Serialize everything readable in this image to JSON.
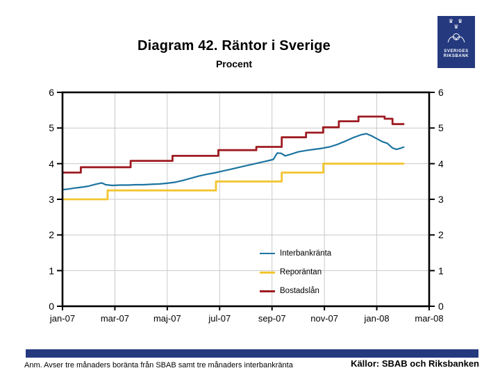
{
  "page": {
    "title": "Diagram 42. Räntor i Sverige",
    "subtitle": "Procent",
    "note": "Anm. Avser tre månaders boränta från SBAB samt tre månaders interbankränta",
    "sources": "Källor: SBAB och Riksbanken",
    "accent_color": "#24397E"
  },
  "logo": {
    "crowns_top": "♛ ♛",
    "crown_bottom": "♛",
    "line1": "SVERIGES",
    "line2": "RIKSBANK",
    "background": "#24397E"
  },
  "chart_data": {
    "type": "line",
    "title": "Diagram 42. Räntor i Sverige",
    "subtitle": "Procent",
    "xlabel": "",
    "ylabel": "Procent",
    "ylim": [
      0,
      6
    ],
    "yticks": [
      0,
      1,
      2,
      3,
      4,
      5,
      6
    ],
    "xlim_months": [
      0,
      14
    ],
    "xtick_months": [
      0,
      2,
      4,
      6,
      8,
      10,
      12,
      14
    ],
    "xlabels": [
      "jan-07",
      "mar-07",
      "maj-07",
      "jul-07",
      "sep-07",
      "nov-07",
      "jan-08",
      "mar-08"
    ],
    "grid": true,
    "grid_x_months": [
      2,
      4,
      6,
      8,
      10,
      12
    ],
    "grid_y_values": [
      1,
      2,
      3,
      4,
      5
    ],
    "grid_color": "#C9C9C9",
    "frame_color": "#000000",
    "legend_position": "inside-lower-center",
    "series": [
      {
        "name": "Interbankränta",
        "color": "#1C74A0",
        "width": 2.2,
        "points": [
          [
            0,
            3.27
          ],
          [
            0.25,
            3.29
          ],
          [
            0.5,
            3.32
          ],
          [
            0.75,
            3.34
          ],
          [
            1.0,
            3.37
          ],
          [
            1.25,
            3.42
          ],
          [
            1.5,
            3.46
          ],
          [
            1.65,
            3.41
          ],
          [
            1.9,
            3.39
          ],
          [
            2.2,
            3.4
          ],
          [
            2.5,
            3.4
          ],
          [
            2.8,
            3.41
          ],
          [
            3.1,
            3.41
          ],
          [
            3.4,
            3.42
          ],
          [
            3.7,
            3.43
          ],
          [
            4.0,
            3.45
          ],
          [
            4.3,
            3.48
          ],
          [
            4.6,
            3.53
          ],
          [
            4.9,
            3.59
          ],
          [
            5.2,
            3.65
          ],
          [
            5.5,
            3.7
          ],
          [
            5.8,
            3.74
          ],
          [
            6.1,
            3.79
          ],
          [
            6.4,
            3.84
          ],
          [
            6.7,
            3.89
          ],
          [
            7.0,
            3.94
          ],
          [
            7.3,
            3.99
          ],
          [
            7.6,
            4.04
          ],
          [
            7.9,
            4.09
          ],
          [
            8.05,
            4.12
          ],
          [
            8.2,
            4.3
          ],
          [
            8.35,
            4.29
          ],
          [
            8.5,
            4.22
          ],
          [
            8.7,
            4.26
          ],
          [
            9.0,
            4.33
          ],
          [
            9.3,
            4.37
          ],
          [
            9.6,
            4.4
          ],
          [
            9.9,
            4.43
          ],
          [
            10.2,
            4.47
          ],
          [
            10.5,
            4.54
          ],
          [
            10.8,
            4.63
          ],
          [
            11.1,
            4.73
          ],
          [
            11.4,
            4.81
          ],
          [
            11.6,
            4.84
          ],
          [
            11.8,
            4.78
          ],
          [
            12.0,
            4.7
          ],
          [
            12.2,
            4.62
          ],
          [
            12.4,
            4.57
          ],
          [
            12.6,
            4.44
          ],
          [
            12.75,
            4.4
          ],
          [
            12.9,
            4.43
          ],
          [
            13.05,
            4.47
          ]
        ]
      },
      {
        "name": "Reporäntan",
        "color": "#F2C52F",
        "width": 2.8,
        "points": [
          [
            0,
            3.0
          ],
          [
            1.72,
            3.0
          ],
          [
            1.72,
            3.25
          ],
          [
            5.86,
            3.25
          ],
          [
            5.86,
            3.5
          ],
          [
            8.37,
            3.5
          ],
          [
            8.37,
            3.75
          ],
          [
            9.96,
            3.75
          ],
          [
            9.96,
            4.0
          ],
          [
            13.05,
            4.0
          ]
        ]
      },
      {
        "name": "Bostadslån",
        "color": "#9E1B21",
        "width": 2.8,
        "points": [
          [
            0,
            3.75
          ],
          [
            0.7,
            3.75
          ],
          [
            0.7,
            3.9
          ],
          [
            2.6,
            3.9
          ],
          [
            2.6,
            4.08
          ],
          [
            4.2,
            4.08
          ],
          [
            4.2,
            4.22
          ],
          [
            5.95,
            4.22
          ],
          [
            5.95,
            4.38
          ],
          [
            7.4,
            4.38
          ],
          [
            7.4,
            4.47
          ],
          [
            8.37,
            4.47
          ],
          [
            8.37,
            4.74
          ],
          [
            9.3,
            4.74
          ],
          [
            9.3,
            4.87
          ],
          [
            9.95,
            4.87
          ],
          [
            9.95,
            5.02
          ],
          [
            10.55,
            5.02
          ],
          [
            10.55,
            5.19
          ],
          [
            11.3,
            5.19
          ],
          [
            11.3,
            5.32
          ],
          [
            12.3,
            5.32
          ],
          [
            12.3,
            5.26
          ],
          [
            12.6,
            5.26
          ],
          [
            12.6,
            5.11
          ],
          [
            13.05,
            5.11
          ]
        ]
      }
    ]
  }
}
